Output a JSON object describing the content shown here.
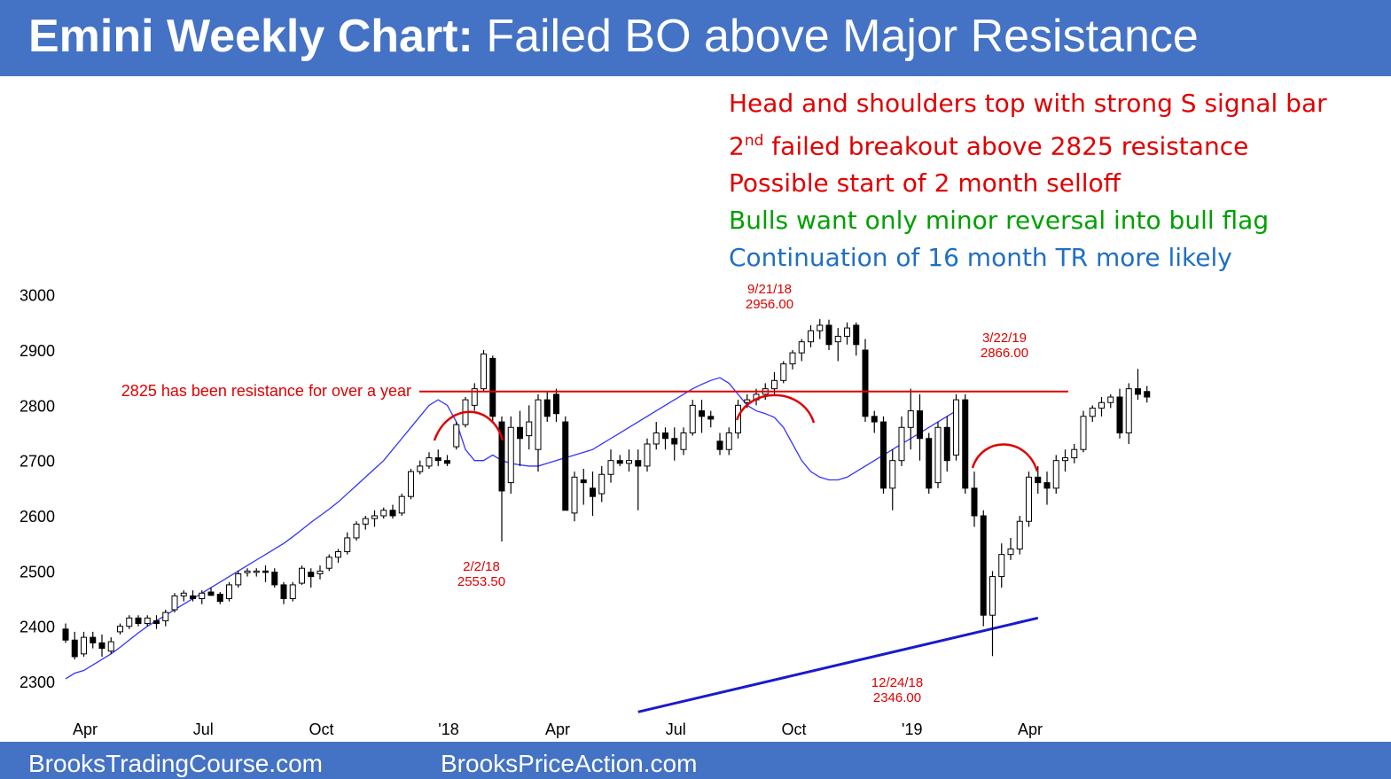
{
  "header": {
    "title_bold": "Emini Weekly Chart:",
    "title_rest": "Failed BO above Major Resistance"
  },
  "notes": {
    "line1": "Head and shoulders top with strong S signal bar",
    "line2_num": "2",
    "line2_sup": "nd",
    "line2_rest": " failed breakout above 2825 resistance",
    "line3": "Possible start of 2 month selloff",
    "line4": "Bulls want only minor reversal into bull flag",
    "line5": "Continuation of 16 month TR more likely"
  },
  "footer": {
    "left": "BrooksTradingCourse.com",
    "center": "BrooksPriceAction.com"
  },
  "colors": {
    "banner": "#4472c4",
    "red": "#e00000",
    "green": "#00a000",
    "blue": "#1f6fc5",
    "ma": "#3333ff",
    "trendline": "#1a1acc"
  },
  "chart_data": {
    "type": "candlestick",
    "ylim": [
      2280,
      3010
    ],
    "yticks": [
      2300,
      2400,
      2500,
      2600,
      2700,
      2800,
      2900,
      3000
    ],
    "xticks": [
      "Apr",
      "Jul",
      "Oct",
      "'18",
      "Apr",
      "Jul",
      "Oct",
      "'19",
      "Apr"
    ],
    "xtick_weeks": [
      0,
      13,
      26,
      40,
      52,
      65,
      78,
      91,
      104
    ],
    "resistance": {
      "value": 2825,
      "label": "2825 has been resistance for over a year"
    },
    "annotations": [
      {
        "week": 43,
        "date": "2/2/18",
        "price": "2553.50"
      },
      {
        "week": 76,
        "date": "9/21/18",
        "price": "2956.00"
      },
      {
        "week": 90,
        "date": "12/24/18",
        "price": "2346.00"
      },
      {
        "week": 103,
        "date": "3/22/19",
        "price": "2866.00"
      }
    ],
    "trendline": [
      {
        "week": 63,
        "value": 2245
      },
      {
        "week": 107,
        "value": 2415
      }
    ],
    "moving_average": [
      2305,
      2315,
      2320,
      2330,
      2340,
      2350,
      2362,
      2375,
      2388,
      2400,
      2410,
      2420,
      2430,
      2440,
      2450,
      2460,
      2470,
      2480,
      2490,
      2500,
      2510,
      2520,
      2530,
      2540,
      2550,
      2562,
      2575,
      2588,
      2600,
      2612,
      2625,
      2640,
      2655,
      2670,
      2685,
      2700,
      2720,
      2740,
      2760,
      2780,
      2800,
      2810,
      2800,
      2770,
      2720,
      2700,
      2700,
      2710,
      2700,
      2695,
      2692,
      2690,
      2690,
      2695,
      2700,
      2705,
      2710,
      2715,
      2720,
      2730,
      2740,
      2750,
      2760,
      2770,
      2780,
      2790,
      2800,
      2810,
      2820,
      2830,
      2838,
      2845,
      2850,
      2840,
      2820,
      2800,
      2790,
      2785,
      2778,
      2760,
      2730,
      2700,
      2680,
      2670,
      2665,
      2665,
      2670,
      2680,
      2690,
      2700,
      2710,
      2720,
      2730,
      2740,
      2750,
      2760,
      2770,
      2780,
      2790
    ],
    "candles": [
      [
        2395,
        2405,
        2370,
        2375
      ],
      [
        2375,
        2390,
        2340,
        2345
      ],
      [
        2350,
        2390,
        2345,
        2380
      ],
      [
        2380,
        2390,
        2360,
        2370
      ],
      [
        2370,
        2385,
        2345,
        2360
      ],
      [
        2355,
        2380,
        2350,
        2372
      ],
      [
        2390,
        2405,
        2385,
        2400
      ],
      [
        2400,
        2420,
        2395,
        2415
      ],
      [
        2415,
        2420,
        2400,
        2405
      ],
      [
        2405,
        2420,
        2400,
        2415
      ],
      [
        2410,
        2420,
        2395,
        2405
      ],
      [
        2410,
        2430,
        2400,
        2425
      ],
      [
        2430,
        2460,
        2425,
        2455
      ],
      [
        2455,
        2465,
        2445,
        2460
      ],
      [
        2455,
        2465,
        2445,
        2450
      ],
      [
        2450,
        2465,
        2440,
        2460
      ],
      [
        2462,
        2470,
        2455,
        2456
      ],
      [
        2458,
        2462,
        2440,
        2445
      ],
      [
        2450,
        2480,
        2445,
        2475
      ],
      [
        2475,
        2500,
        2470,
        2495
      ],
      [
        2497,
        2505,
        2490,
        2500
      ],
      [
        2500,
        2505,
        2490,
        2500
      ],
      [
        2500,
        2510,
        2480,
        2498
      ],
      [
        2498,
        2505,
        2470,
        2475
      ],
      [
        2475,
        2480,
        2440,
        2450
      ],
      [
        2450,
        2480,
        2445,
        2475
      ],
      [
        2478,
        2510,
        2475,
        2505
      ],
      [
        2498,
        2505,
        2470,
        2490
      ],
      [
        2495,
        2510,
        2485,
        2500
      ],
      [
        2505,
        2530,
        2500,
        2525
      ],
      [
        2525,
        2540,
        2515,
        2535
      ],
      [
        2535,
        2570,
        2530,
        2560
      ],
      [
        2560,
        2590,
        2555,
        2585
      ],
      [
        2585,
        2600,
        2575,
        2595
      ],
      [
        2595,
        2610,
        2580,
        2600
      ],
      [
        2600,
        2615,
        2595,
        2610
      ],
      [
        2610,
        2620,
        2595,
        2600
      ],
      [
        2605,
        2640,
        2600,
        2635
      ],
      [
        2635,
        2685,
        2630,
        2680
      ],
      [
        2680,
        2700,
        2675,
        2690
      ],
      [
        2690,
        2715,
        2685,
        2705
      ],
      [
        2705,
        2720,
        2690,
        2700
      ],
      [
        2700,
        2710,
        2690,
        2695
      ],
      [
        2725,
        2770,
        2720,
        2765
      ],
      [
        2765,
        2815,
        2760,
        2810
      ],
      [
        2800,
        2840,
        2790,
        2830
      ],
      [
        2830,
        2900,
        2825,
        2893
      ],
      [
        2885,
        2890,
        2770,
        2780
      ],
      [
        2770,
        2780,
        2553.5,
        2645
      ],
      [
        2660,
        2780,
        2640,
        2760
      ],
      [
        2760,
        2790,
        2690,
        2740
      ],
      [
        2745,
        2800,
        2720,
        2770
      ],
      [
        2720,
        2820,
        2680,
        2810
      ],
      [
        2810,
        2825,
        2770,
        2780
      ],
      [
        2820,
        2830,
        2770,
        2785
      ],
      [
        2770,
        2780,
        2610,
        2610
      ],
      [
        2605,
        2680,
        2590,
        2670
      ],
      [
        2665,
        2685,
        2620,
        2660
      ],
      [
        2650,
        2680,
        2600,
        2635
      ],
      [
        2640,
        2690,
        2625,
        2675
      ],
      [
        2675,
        2720,
        2660,
        2700
      ],
      [
        2700,
        2710,
        2690,
        2695
      ],
      [
        2695,
        2720,
        2680,
        2700
      ],
      [
        2700,
        2720,
        2610,
        2690
      ],
      [
        2690,
        2740,
        2680,
        2730
      ],
      [
        2730,
        2770,
        2720,
        2750
      ],
      [
        2750,
        2760,
        2720,
        2740
      ],
      [
        2740,
        2760,
        2700,
        2730
      ],
      [
        2720,
        2760,
        2710,
        2750
      ],
      [
        2750,
        2810,
        2745,
        2800
      ],
      [
        2790,
        2810,
        2750,
        2780
      ],
      [
        2780,
        2790,
        2760,
        2775
      ],
      [
        2735,
        2750,
        2710,
        2720
      ],
      [
        2720,
        2760,
        2710,
        2750
      ],
      [
        2750,
        2810,
        2740,
        2800
      ],
      [
        2805,
        2820,
        2795,
        2810
      ],
      [
        2810,
        2830,
        2800,
        2820
      ],
      [
        2820,
        2840,
        2810,
        2830
      ],
      [
        2830,
        2860,
        2820,
        2845
      ],
      [
        2845,
        2880,
        2840,
        2875
      ],
      [
        2875,
        2900,
        2865,
        2895
      ],
      [
        2895,
        2920,
        2880,
        2915
      ],
      [
        2915,
        2945,
        2905,
        2935
      ],
      [
        2935,
        2956,
        2920,
        2945
      ],
      [
        2945,
        2955,
        2900,
        2910
      ],
      [
        2915,
        2940,
        2880,
        2925
      ],
      [
        2925,
        2950,
        2910,
        2940
      ],
      [
        2945,
        2950,
        2890,
        2910
      ],
      [
        2900,
        2920,
        2770,
        2780
      ],
      [
        2780,
        2790,
        2750,
        2770
      ],
      [
        2770,
        2780,
        2640,
        2650
      ],
      [
        2650,
        2720,
        2610,
        2700
      ],
      [
        2700,
        2780,
        2690,
        2760
      ],
      [
        2760,
        2830,
        2720,
        2790
      ],
      [
        2790,
        2820,
        2700,
        2740
      ],
      [
        2740,
        2750,
        2640,
        2650
      ],
      [
        2660,
        2770,
        2650,
        2760
      ],
      [
        2760,
        2780,
        2680,
        2700
      ],
      [
        2710,
        2820,
        2700,
        2810
      ],
      [
        2810,
        2820,
        2640,
        2650
      ],
      [
        2650,
        2680,
        2580,
        2600
      ],
      [
        2600,
        2610,
        2400,
        2420
      ],
      [
        2420,
        2500,
        2346,
        2490
      ],
      [
        2490,
        2550,
        2470,
        2530
      ],
      [
        2530,
        2560,
        2520,
        2540
      ],
      [
        2540,
        2600,
        2530,
        2590
      ],
      [
        2590,
        2680,
        2580,
        2670
      ],
      [
        2670,
        2690,
        2640,
        2660
      ],
      [
        2660,
        2680,
        2620,
        2650
      ],
      [
        2650,
        2710,
        2640,
        2700
      ],
      [
        2700,
        2720,
        2680,
        2705
      ],
      [
        2705,
        2730,
        2695,
        2720
      ],
      [
        2720,
        2790,
        2715,
        2780
      ],
      [
        2780,
        2800,
        2770,
        2795
      ],
      [
        2795,
        2815,
        2780,
        2805
      ],
      [
        2805,
        2820,
        2795,
        2815
      ],
      [
        2815,
        2830,
        2740,
        2750
      ],
      [
        2750,
        2840,
        2730,
        2830
      ],
      [
        2830,
        2866,
        2810,
        2820
      ],
      [
        2825,
        2835,
        2805,
        2815
      ]
    ]
  }
}
